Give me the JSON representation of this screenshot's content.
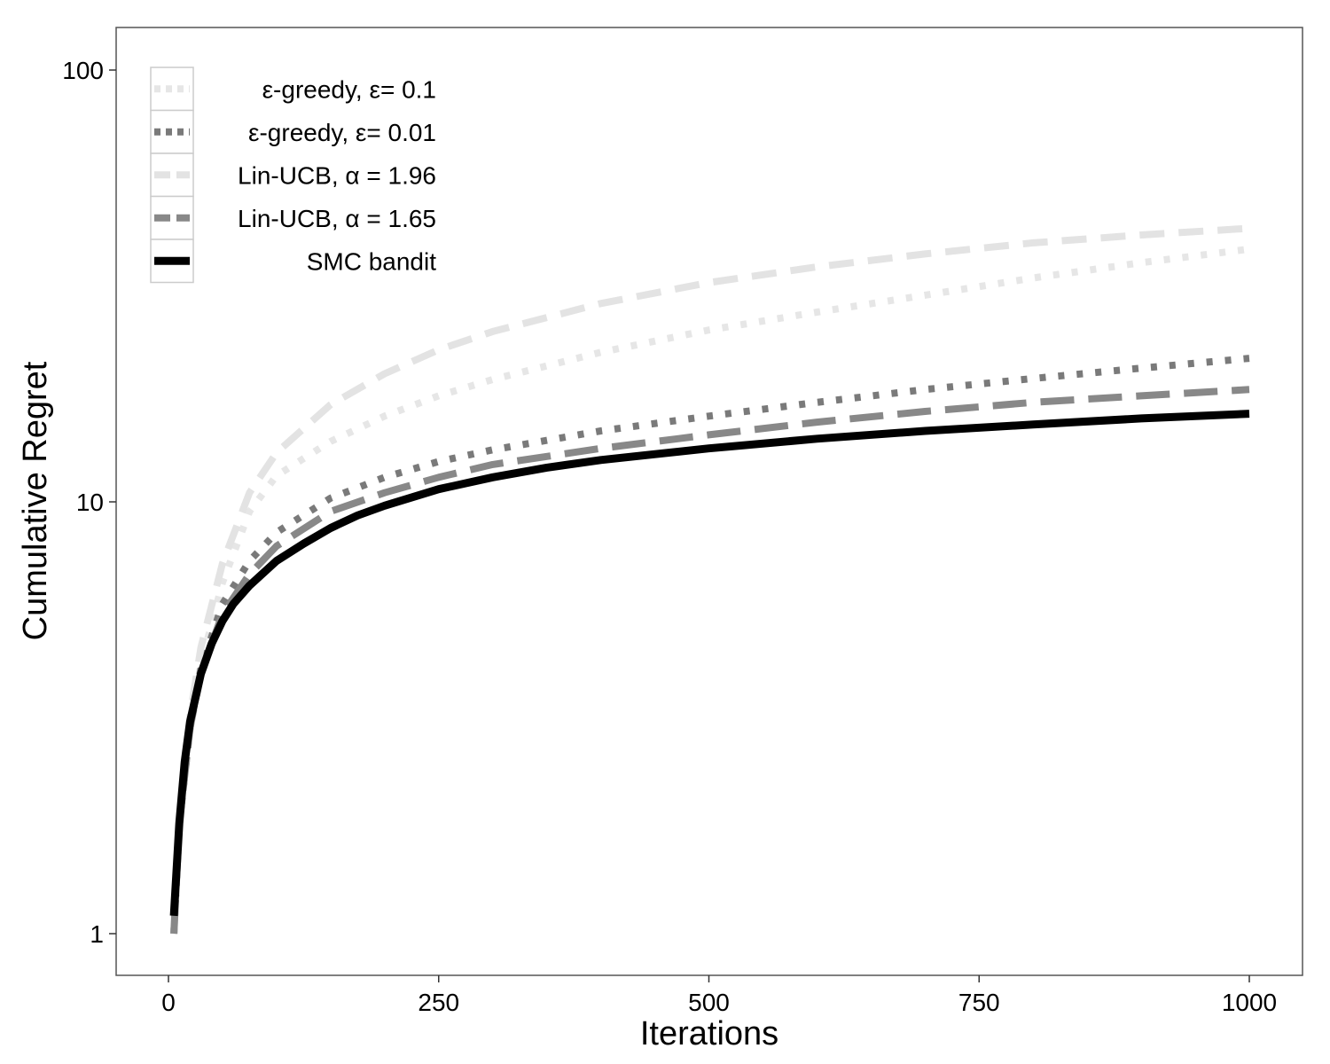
{
  "chart_data": {
    "type": "line",
    "xlabel": "Iterations",
    "ylabel": "Cumulative Regret",
    "x_ticks": [
      0,
      250,
      500,
      750,
      1000
    ],
    "x_tick_labels": [
      "0",
      "250",
      "500",
      "750",
      "1000"
    ],
    "y_ticks": [
      1,
      10,
      100
    ],
    "y_tick_labels": [
      "1",
      "10",
      "100"
    ],
    "y_scale": "log10",
    "xlim": [
      -48,
      1048
    ],
    "ylim": [
      0.8,
      125
    ],
    "grid": false,
    "legend_position": "top-left",
    "series": [
      {
        "name": "ε-greedy, ε= 0.1",
        "color": "#e6e6e6",
        "style": "dotted",
        "x": [
          5,
          10,
          20,
          30,
          50,
          75,
          100,
          150,
          200,
          250,
          300,
          400,
          500,
          600,
          700,
          800,
          900,
          1000
        ],
        "y": [
          1.0,
          1.8,
          3.0,
          4.2,
          6.5,
          9.5,
          11.5,
          13.8,
          15.8,
          17.6,
          19.2,
          22.2,
          25.0,
          27.5,
          30.1,
          33.0,
          35.8,
          38.5
        ]
      },
      {
        "name": "ε-greedy, ε= 0.01",
        "color": "#7a7a7a",
        "style": "dotted",
        "x": [
          5,
          10,
          20,
          30,
          50,
          75,
          100,
          150,
          200,
          250,
          300,
          400,
          500,
          600,
          700,
          800,
          900,
          1000
        ],
        "y": [
          1.0,
          1.8,
          3.0,
          4.1,
          5.8,
          7.3,
          8.5,
          10.2,
          11.4,
          12.4,
          13.2,
          14.6,
          15.8,
          17.0,
          18.2,
          19.3,
          20.4,
          21.5
        ]
      },
      {
        "name": "Lin-UCB, α = 1.96",
        "color": "#e3e3e3",
        "style": "dashed",
        "x": [
          5,
          10,
          20,
          30,
          50,
          75,
          100,
          150,
          200,
          250,
          300,
          400,
          500,
          600,
          700,
          800,
          900,
          1000
        ],
        "y": [
          1.0,
          1.8,
          3.2,
          4.6,
          7.2,
          10.5,
          13.0,
          16.8,
          19.8,
          22.5,
          24.8,
          28.8,
          32.2,
          35.0,
          37.5,
          39.8,
          41.5,
          43.0
        ]
      },
      {
        "name": "Lin-UCB, α = 1.65",
        "color": "#888888",
        "style": "longdash",
        "x": [
          5,
          10,
          20,
          30,
          50,
          75,
          100,
          150,
          200,
          250,
          300,
          400,
          500,
          600,
          700,
          800,
          900,
          1000
        ],
        "y": [
          1.0,
          1.8,
          3.0,
          4.0,
          5.5,
          6.8,
          7.9,
          9.5,
          10.5,
          11.4,
          12.2,
          13.3,
          14.3,
          15.3,
          16.2,
          17.0,
          17.6,
          18.2
        ]
      },
      {
        "name": "SMC bandit",
        "color": "#000000",
        "style": "solid",
        "x": [
          5,
          10,
          15,
          20,
          30,
          40,
          50,
          60,
          75,
          100,
          125,
          150,
          175,
          200,
          250,
          300,
          350,
          400,
          500,
          600,
          700,
          800,
          900,
          1000
        ],
        "y": [
          1.1,
          1.8,
          2.5,
          3.1,
          4.0,
          4.7,
          5.3,
          5.8,
          6.4,
          7.3,
          8.0,
          8.7,
          9.3,
          9.8,
          10.7,
          11.4,
          12.0,
          12.5,
          13.3,
          14.0,
          14.6,
          15.1,
          15.6,
          16.0
        ]
      }
    ]
  }
}
